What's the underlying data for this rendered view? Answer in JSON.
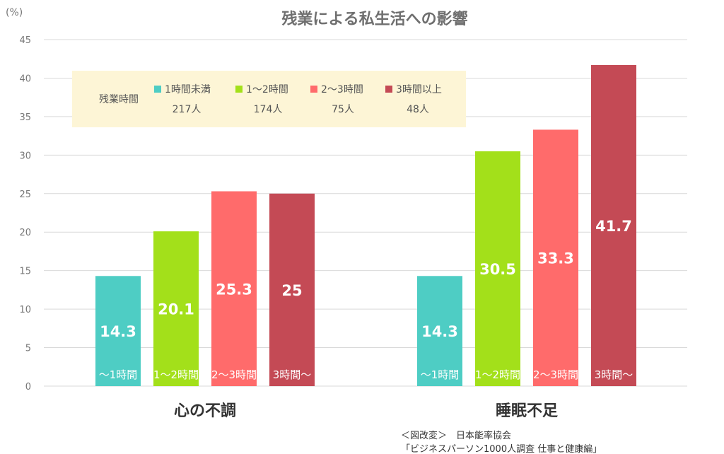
{
  "chart_data": {
    "type": "bar",
    "title": "残業による私生活への影響",
    "ylabel": "(%)",
    "ylim": [
      0,
      45
    ],
    "yticks": [
      "0",
      "5",
      "10",
      "15",
      "20",
      "25",
      "30",
      "35",
      "40",
      "45"
    ],
    "grid": true,
    "categories": [
      "心の不調",
      "睡眠不足"
    ],
    "series": [
      {
        "name": "1時間未満",
        "count": "217人",
        "bar_label": "〜1時間",
        "color": "#4ecdc4",
        "values": [
          14.3,
          14.3
        ]
      },
      {
        "name": "1〜2時間",
        "count": "174人",
        "bar_label": "1〜2時間",
        "color": "#a3e01a",
        "values": [
          20.1,
          30.5
        ]
      },
      {
        "name": "2〜3時間",
        "count": "75人",
        "bar_label": "2〜3時間",
        "color": "#ff6b6b",
        "values": [
          25.3,
          33.3
        ]
      },
      {
        "name": "3時間以上",
        "count": "48人",
        "bar_label": "3時間〜",
        "color": "#c44a55",
        "values": [
          25,
          41.7
        ]
      }
    ],
    "legend": {
      "title": "残業時間",
      "position": "top-left",
      "background": "#fdf5d6"
    },
    "source": {
      "line1": "＜図改変＞　日本能率協会",
      "line2": "「ビジネスパーソン1000人調査 仕事と健康編」"
    }
  }
}
